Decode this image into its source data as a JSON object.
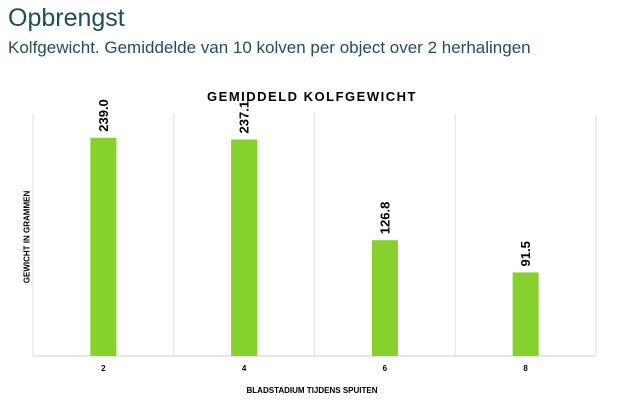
{
  "header": {
    "title": "Opbrengst",
    "subtitle": "Kolfgewicht. Gemiddelde van 10 kolven per object over 2 herhalingen"
  },
  "chart_data": {
    "type": "bar",
    "title": "GEMIDDELD KOLFGEWICHT",
    "xlabel": "BLADSTADIUM TIJDENS SPUITEN",
    "ylabel": "GEWICHT IN GRAMMEN",
    "categories": [
      "2",
      "4",
      "6",
      "8"
    ],
    "values": [
      239.0,
      237.1,
      126.8,
      91.5
    ],
    "value_labels": [
      "239.0",
      "237.1",
      "126.8",
      "91.5"
    ],
    "ylim": [
      0,
      265
    ],
    "grid": "vertical",
    "legend": "none",
    "bar_color": "#86d12b"
  }
}
